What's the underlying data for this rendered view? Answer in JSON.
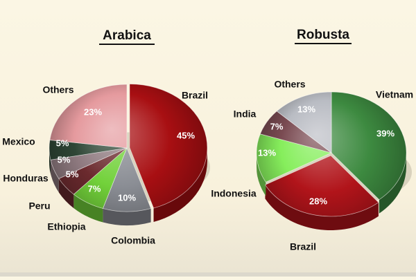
{
  "chart_data": [
    {
      "type": "pie",
      "title": "Arabica",
      "unit": "%",
      "categories": [
        "Brazil",
        "Colombia",
        "Ethiopia",
        "Peru",
        "Honduras",
        "Mexico",
        "Others"
      ],
      "values": [
        45,
        10,
        7,
        5,
        5,
        5,
        23
      ],
      "value_labels": [
        "45%",
        "10%",
        "7%",
        "5%",
        "5%",
        "5%",
        "23%"
      ],
      "colors": [
        "#a80f12",
        "#8a8d94",
        "#72d13a",
        "#6b2a2e",
        "#8f7a80",
        "#2f4636",
        "#e59a9e"
      ],
      "style": "3d-exploded"
    },
    {
      "type": "pie",
      "title": "Robusta",
      "unit": "%",
      "categories": [
        "Vietnam",
        "Brazil",
        "Indonesia",
        "India",
        "Others"
      ],
      "values": [
        39,
        28,
        13,
        7,
        13
      ],
      "value_labels": [
        "39%",
        "28%",
        "13%",
        "7%",
        "13%"
      ],
      "colors": [
        "#3d8a40",
        "#b1141a",
        "#86ee5c",
        "#7a4b52",
        "#b9bcc3"
      ],
      "style": "3d-exploded"
    }
  ]
}
